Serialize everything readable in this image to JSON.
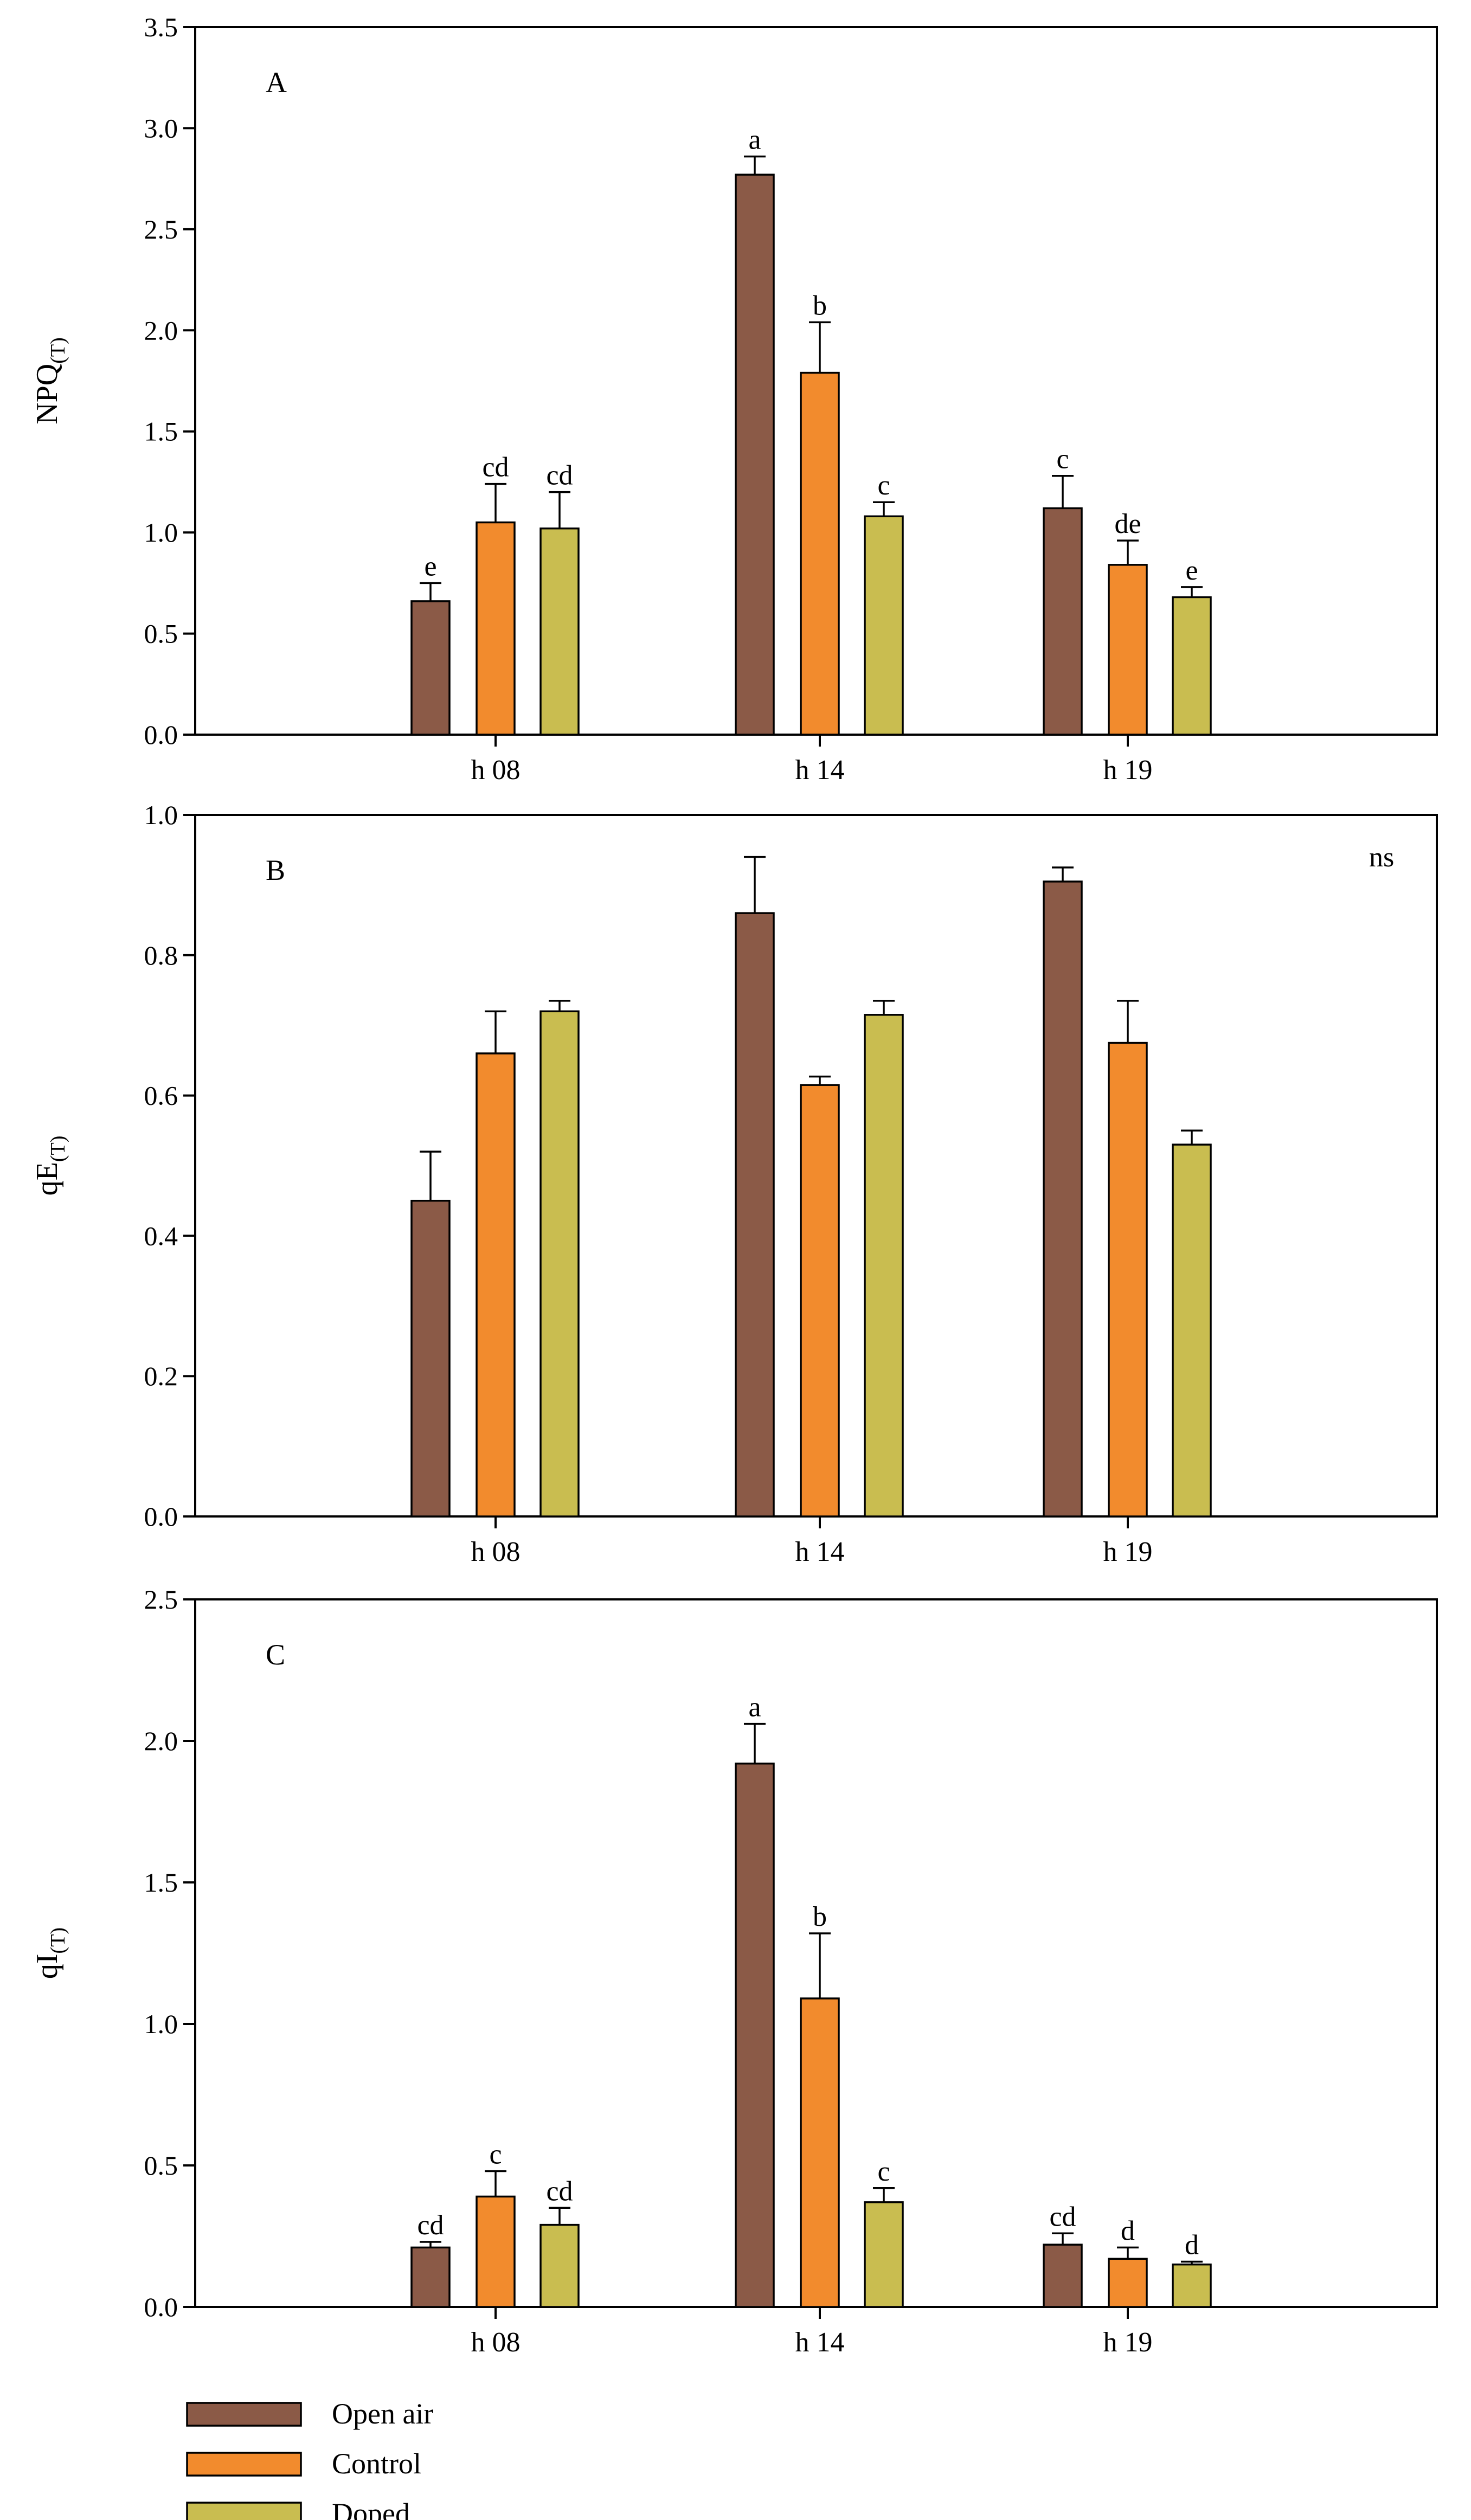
{
  "series_styles": [
    {
      "name": "Open air",
      "color": "#8b5a47"
    },
    {
      "name": "Control",
      "color": "#f28b2d"
    },
    {
      "name": "Doped",
      "color": "#c9bd50"
    }
  ],
  "legend": {
    "items": [
      "Open air",
      "Control",
      "Doped"
    ]
  },
  "chart_data": [
    {
      "type": "bar",
      "panel_label": "A",
      "ylabel": "NPQ",
      "ylabel_sub": "(T)",
      "categories": [
        "h 08",
        "h 14",
        "h 19"
      ],
      "ylim": [
        0,
        3.5
      ],
      "yticks": [
        "0.0",
        "0.5",
        "1.0",
        "1.5",
        "2.0",
        "2.5",
        "3.0",
        "3.5"
      ],
      "annotation": "",
      "series": [
        {
          "name": "Open air",
          "values": [
            0.66,
            2.77,
            1.12
          ],
          "errors": [
            0.09,
            0.09,
            0.16
          ],
          "letters": [
            "e",
            "a",
            "c"
          ]
        },
        {
          "name": "Control",
          "values": [
            1.05,
            1.79,
            0.84
          ],
          "errors": [
            0.19,
            0.25,
            0.12
          ],
          "letters": [
            "cd",
            "b",
            "de"
          ]
        },
        {
          "name": "Doped",
          "values": [
            1.02,
            1.08,
            0.68
          ],
          "errors": [
            0.18,
            0.07,
            0.05
          ],
          "letters": [
            "cd",
            "c",
            "e"
          ]
        }
      ]
    },
    {
      "type": "bar",
      "panel_label": "B",
      "ylabel": "qE",
      "ylabel_sub": "(T)",
      "categories": [
        "h 08",
        "h 14",
        "h 19"
      ],
      "ylim": [
        0,
        1.0
      ],
      "yticks": [
        "0.0",
        "0.2",
        "0.4",
        "0.6",
        "0.8",
        "1.0"
      ],
      "annotation": "ns",
      "series": [
        {
          "name": "Open air",
          "values": [
            0.45,
            0.86,
            0.905
          ],
          "errors": [
            0.07,
            0.08,
            0.02
          ],
          "letters": [
            "",
            "",
            ""
          ]
        },
        {
          "name": "Control",
          "values": [
            0.66,
            0.615,
            0.675
          ],
          "errors": [
            0.06,
            0.012,
            0.06
          ],
          "letters": [
            "",
            "",
            ""
          ]
        },
        {
          "name": "Doped",
          "values": [
            0.72,
            0.715,
            0.53
          ],
          "errors": [
            0.015,
            0.02,
            0.02
          ],
          "letters": [
            "",
            "",
            ""
          ]
        }
      ]
    },
    {
      "type": "bar",
      "panel_label": "C",
      "ylabel": "qI",
      "ylabel_sub": "(T)",
      "categories": [
        "h 08",
        "h 14",
        "h 19"
      ],
      "ylim": [
        0,
        2.5
      ],
      "yticks": [
        "0.0",
        "0.5",
        "1.0",
        "1.5",
        "2.0",
        "2.5"
      ],
      "annotation": "",
      "series": [
        {
          "name": "Open air",
          "values": [
            0.21,
            1.92,
            0.22
          ],
          "errors": [
            0.02,
            0.14,
            0.04
          ],
          "letters": [
            "cd",
            "a",
            "cd"
          ]
        },
        {
          "name": "Control",
          "values": [
            0.39,
            1.09,
            0.17
          ],
          "errors": [
            0.09,
            0.23,
            0.04
          ],
          "letters": [
            "c",
            "b",
            "d"
          ]
        },
        {
          "name": "Doped",
          "values": [
            0.29,
            0.37,
            0.15
          ],
          "errors": [
            0.06,
            0.05,
            0.01
          ],
          "letters": [
            "cd",
            "c",
            "d"
          ]
        }
      ]
    }
  ]
}
